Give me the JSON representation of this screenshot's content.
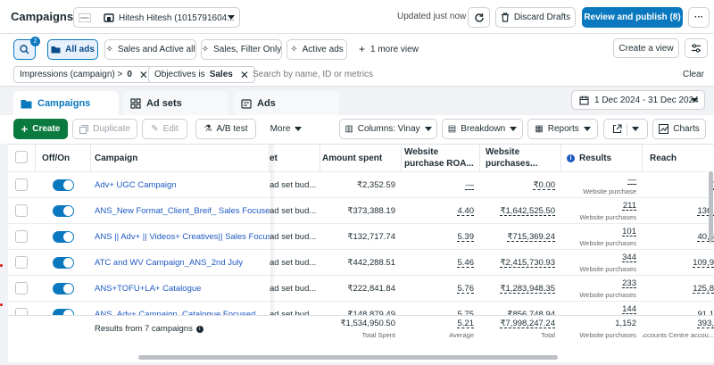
{
  "header": {
    "title": "Campaigns",
    "account_logo_text": "KIRAN",
    "account_name": "Hitesh Hitesh (1015791604...",
    "updated": "Updated just now",
    "discard_label": "Discard Drafts",
    "review_label": "Review and publish (8)",
    "more_label": "···"
  },
  "chips": {
    "search_badge": "2",
    "all_ads": "All ads",
    "items": [
      "Sales and Active all",
      "Sales, Filter Only",
      "Active ads"
    ],
    "more_views": "1 more view",
    "create_view": "Create a view"
  },
  "filters": {
    "f1_prefix": "Impressions (campaign) >",
    "f1_value": "0",
    "f2_prefix": "Objectives is",
    "f2_value": "Sales",
    "search_placeholder": "Search by name, ID or metrics",
    "clear_label": "Clear"
  },
  "tabs": {
    "campaigns": "Campaigns",
    "adsets": "Ad sets",
    "ads": "Ads"
  },
  "date_range": "1 Dec 2024 - 31 Dec 2024",
  "toolbar": {
    "create": "Create",
    "duplicate": "Duplicate",
    "edit": "Edit",
    "ab_test": "A/B test",
    "more": "More",
    "columns": "Columns: Vinay",
    "breakdown": "Breakdown",
    "reports": "Reports",
    "charts": "Charts"
  },
  "table": {
    "headers": {
      "offon": "Off/On",
      "campaign": "Campaign",
      "budget_tail": "et",
      "amount_spent": "Amount spent",
      "roas_l1": "Website",
      "roas_l2": "purchase ROA...",
      "purch_l1": "Website",
      "purch_l2": "purchases...",
      "results": "Results",
      "reach": "Reach"
    },
    "rows": [
      {
        "name": "Adv+ UGC Campaign",
        "budget": "ad set bud...",
        "spent": "₹2,352.59",
        "roas": "—",
        "purch": "₹0.00",
        "results": "—",
        "results_sub": "Website purchase",
        "reach": "("
      },
      {
        "name": "ANS_New Format_Client_Breif_ Sales Focused",
        "budget": "ad set bud...",
        "spent": "₹373,388.19",
        "roas": "4.40",
        "purch": "₹1,642,525.50",
        "results": "211",
        "results_sub": "Website purchases",
        "reach": "136,"
      },
      {
        "name": "ANS || Adv+ || Videos+ Creatives|| Sales Focused",
        "budget": "ad set bud...",
        "spent": "₹132,717.74",
        "roas": "5.39",
        "purch": "₹715,369.24",
        "results": "101",
        "results_sub": "Website purchases",
        "reach": "40,6"
      },
      {
        "name": "ATC and WV Campaign_ANS_2nd July",
        "budget": "ad set bud...",
        "spent": "₹442,288.51",
        "roas": "5.46",
        "purch": "₹2,415,730.93",
        "results": "344",
        "results_sub": "Website purchases",
        "reach": "109,9"
      },
      {
        "name": "ANS+TOFU+LA+ Catalogue",
        "budget": "ad set bud...",
        "spent": "₹222,841.84",
        "roas": "5.76",
        "purch": "₹1,283,948.35",
        "results": "233",
        "results_sub": "Website purchases",
        "reach": "125,8"
      },
      {
        "name": "ANS_Adv+ Campaign_Catalogue Focused",
        "budget": "ad set bud...",
        "spent": "₹148,879.49",
        "roas": "5.75",
        "purch": "₹856,748.94",
        "results": "144",
        "results_sub": "Website purchases",
        "reach": "91,1"
      }
    ],
    "totals": {
      "label": "Results from 7 campaigns",
      "spent": "₹1,534,950.50",
      "spent_sub": "Total Spent",
      "roas": "5.21",
      "roas_sub": "Average",
      "purch": "₹7,998,247.24",
      "purch_sub": "Total",
      "results": "1,152",
      "results_sub": "Website purchases",
      "reach": "393,",
      "reach_sub": "Accounts Centre accou..."
    }
  },
  "colors": {
    "primary": "#0a78be",
    "green": "#0a7a3e",
    "link": "#1f5ac4"
  }
}
